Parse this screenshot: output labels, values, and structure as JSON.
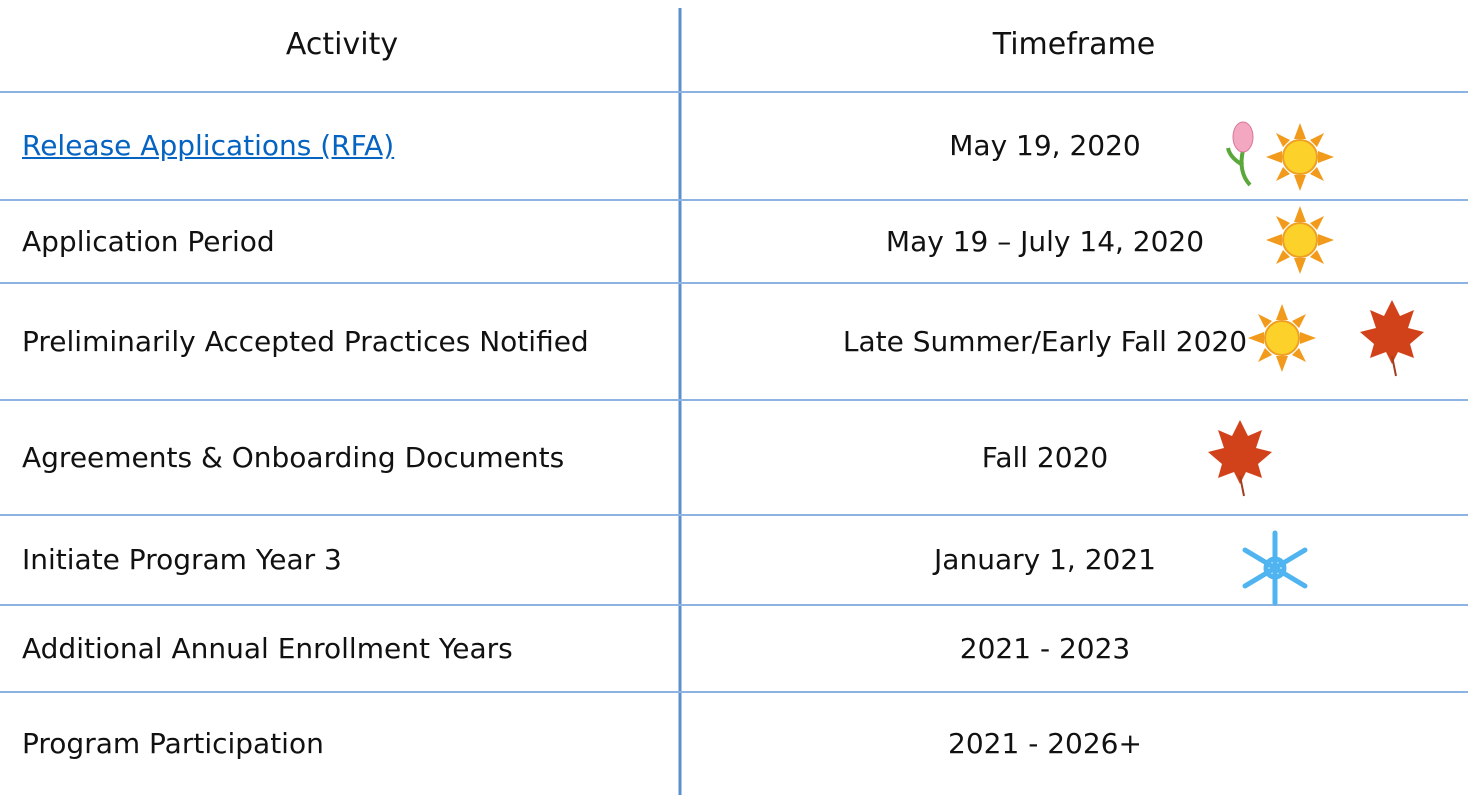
{
  "table": {
    "header": [
      "Activity",
      "Timeframe"
    ],
    "rows": [
      [
        "Release Applications (RFA)",
        "May 19, 2020"
      ],
      [
        "Application Period",
        "May 19 – July 14, 2020"
      ],
      [
        "Preliminarily Accepted Practices Notified",
        "Late Summer/Early Fall 2020"
      ],
      [
        "Agreements & Onboarding Documents",
        "Fall 2020"
      ],
      [
        "Initiate Program Year 3",
        "January 1, 2021"
      ],
      [
        "Additional Annual Enrollment Years",
        "2021 - 2023"
      ],
      [
        "Program Participation",
        "2021 - 2026+"
      ]
    ]
  }
}
